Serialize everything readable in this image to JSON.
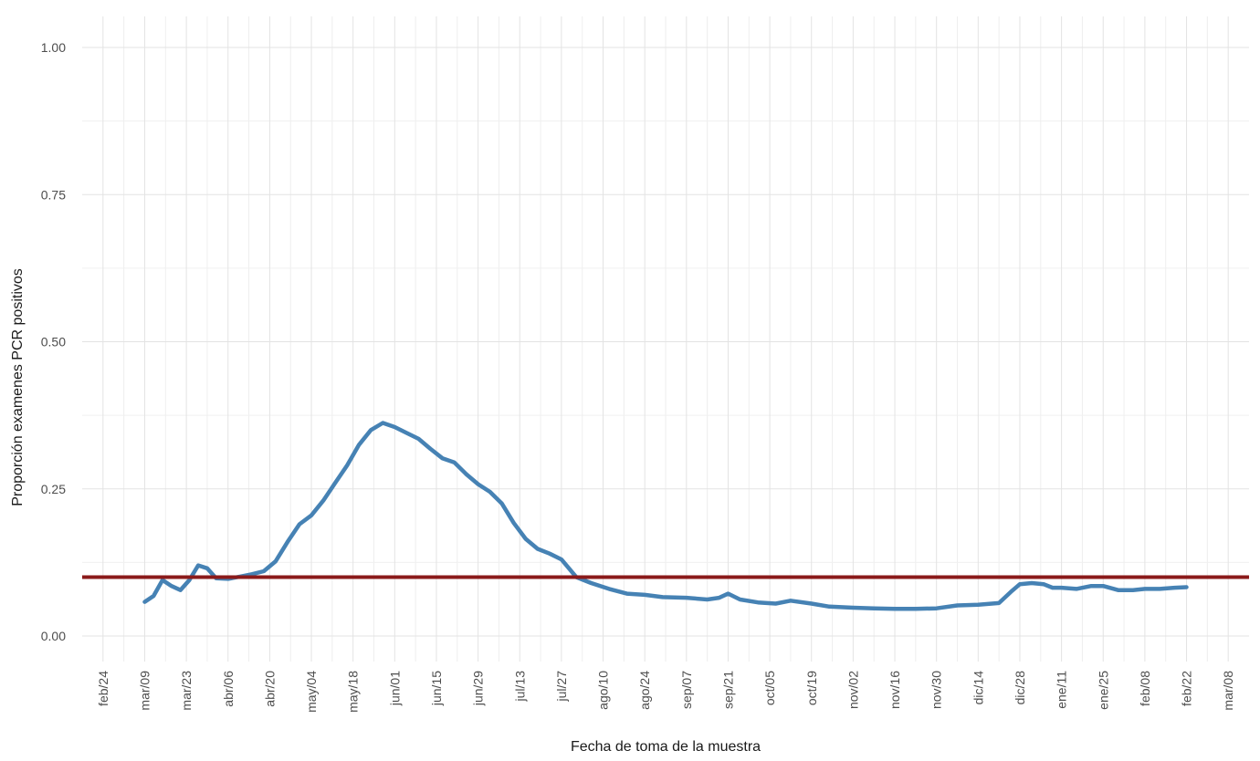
{
  "chart_data": {
    "type": "line",
    "title": "",
    "xlabel": "Fecha de toma de la muestra",
    "ylabel": "Proporción examenes PCR positivos",
    "ylim": [
      0,
      1
    ],
    "y_ticks": [
      "0.00",
      "0.25",
      "0.50",
      "0.75",
      "1.00"
    ],
    "y_tick_values": [
      0,
      0.25,
      0.5,
      0.75,
      1.0
    ],
    "x_ticks": [
      "feb/24",
      "mar/09",
      "mar/23",
      "abr/06",
      "abr/20",
      "may/04",
      "may/18",
      "jun/01",
      "jun/15",
      "jun/29",
      "jul/13",
      "jul/27",
      "ago/10",
      "ago/24",
      "sep/07",
      "sep/21",
      "oct/05",
      "oct/19",
      "nov/02",
      "nov/16",
      "nov/30",
      "dic/14",
      "dic/28",
      "ene/11",
      "ene/25",
      "feb/08",
      "feb/22",
      "mar/08"
    ],
    "x_tick_dates": [
      "2020-02-24",
      "2020-03-09",
      "2020-03-23",
      "2020-04-06",
      "2020-04-20",
      "2020-05-04",
      "2020-05-18",
      "2020-06-01",
      "2020-06-15",
      "2020-06-29",
      "2020-07-13",
      "2020-07-27",
      "2020-08-10",
      "2020-08-24",
      "2020-09-07",
      "2020-09-21",
      "2020-10-05",
      "2020-10-19",
      "2020-11-02",
      "2020-11-16",
      "2020-11-30",
      "2020-12-14",
      "2020-12-28",
      "2021-01-11",
      "2021-01-25",
      "2021-02-08",
      "2021-02-22",
      "2021-03-08"
    ],
    "x_range": [
      "2020-02-17",
      "2021-03-15"
    ],
    "grid": true,
    "reference_line": {
      "y": 0.1,
      "color": "#8b1a1a"
    },
    "series": [
      {
        "color": "#4682b4",
        "x": [
          "2020-03-09",
          "2020-03-12",
          "2020-03-15",
          "2020-03-18",
          "2020-03-21",
          "2020-03-24",
          "2020-03-27",
          "2020-03-30",
          "2020-04-02",
          "2020-04-06",
          "2020-04-10",
          "2020-04-14",
          "2020-04-18",
          "2020-04-22",
          "2020-04-26",
          "2020-04-30",
          "2020-05-04",
          "2020-05-08",
          "2020-05-12",
          "2020-05-16",
          "2020-05-20",
          "2020-05-24",
          "2020-05-28",
          "2020-06-01",
          "2020-06-05",
          "2020-06-09",
          "2020-06-13",
          "2020-06-17",
          "2020-06-21",
          "2020-06-25",
          "2020-06-29",
          "2020-07-03",
          "2020-07-07",
          "2020-07-11",
          "2020-07-15",
          "2020-07-19",
          "2020-07-23",
          "2020-07-27",
          "2020-08-01",
          "2020-08-06",
          "2020-08-12",
          "2020-08-18",
          "2020-08-24",
          "2020-08-30",
          "2020-09-07",
          "2020-09-14",
          "2020-09-18",
          "2020-09-21",
          "2020-09-25",
          "2020-10-01",
          "2020-10-07",
          "2020-10-12",
          "2020-10-19",
          "2020-10-25",
          "2020-11-02",
          "2020-11-09",
          "2020-11-16",
          "2020-11-23",
          "2020-11-30",
          "2020-12-07",
          "2020-12-14",
          "2020-12-21",
          "2020-12-25",
          "2020-12-28",
          "2021-01-01",
          "2021-01-05",
          "2021-01-08",
          "2021-01-11",
          "2021-01-16",
          "2021-01-21",
          "2021-01-25",
          "2021-01-30",
          "2021-02-04",
          "2021-02-08",
          "2021-02-13",
          "2021-02-18",
          "2021-02-22"
        ],
        "y": [
          0.058,
          0.068,
          0.095,
          0.085,
          0.078,
          0.095,
          0.12,
          0.115,
          0.098,
          0.097,
          0.101,
          0.105,
          0.11,
          0.127,
          0.16,
          0.19,
          0.205,
          0.23,
          0.26,
          0.29,
          0.325,
          0.35,
          0.362,
          0.355,
          0.345,
          0.335,
          0.318,
          0.302,
          0.295,
          0.275,
          0.258,
          0.245,
          0.225,
          0.192,
          0.165,
          0.148,
          0.14,
          0.13,
          0.1,
          0.09,
          0.08,
          0.072,
          0.07,
          0.066,
          0.065,
          0.062,
          0.065,
          0.072,
          0.062,
          0.057,
          0.055,
          0.06,
          0.055,
          0.05,
          0.048,
          0.047,
          0.046,
          0.046,
          0.047,
          0.052,
          0.053,
          0.056,
          0.075,
          0.088,
          0.09,
          0.088,
          0.082,
          0.082,
          0.08,
          0.085,
          0.085,
          0.078,
          0.078,
          0.08,
          0.08,
          0.082,
          0.083
        ]
      }
    ]
  }
}
